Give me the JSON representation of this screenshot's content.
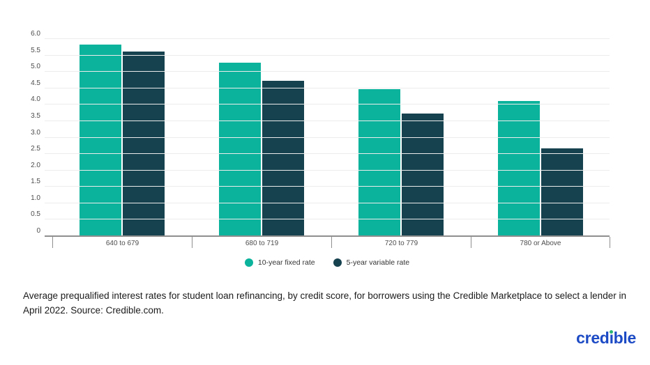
{
  "chart_data": {
    "type": "bar",
    "title": "",
    "xlabel": "",
    "ylabel": "",
    "categories": [
      "640 to 679",
      "680 to 719",
      "720 to 779",
      "780 or Above"
    ],
    "series": [
      {
        "name": "10-year fixed rate",
        "color": "#0bb39c",
        "values": [
          5.8,
          5.25,
          4.45,
          4.1
        ]
      },
      {
        "name": "5-year variable rate",
        "color": "#16414f",
        "values": [
          5.6,
          4.7,
          3.7,
          2.65
        ]
      }
    ],
    "ylim": [
      0,
      6
    ],
    "ytick_step": 0.5,
    "ytick_labels": [
      "6.0",
      "5.5",
      "5.0",
      "4.5",
      "4.0",
      "3.5",
      "3.0",
      "2.5",
      "2.0",
      "1.5",
      "1.0",
      "0.5",
      "0"
    ],
    "grid": true,
    "legend_position": "bottom-center"
  },
  "caption": {
    "text": "Average prequalified interest rates for student loan refinancing, by credit score, for borrowers using the Credible Marketplace to select a lender in April 2022. Source: Credible.com."
  },
  "branding": {
    "logo_text": "credible",
    "logo_color": "#1d4bc5",
    "logo_dot_color": "#2bb573"
  },
  "colors": {
    "bar_teal": "#0bb39c",
    "bar_dark_teal": "#16414f",
    "gridline": "#ececec",
    "axis_line": "#8f8f8f",
    "tick_label": "#4d4d4d",
    "caption_text": "#1a1a1a"
  }
}
